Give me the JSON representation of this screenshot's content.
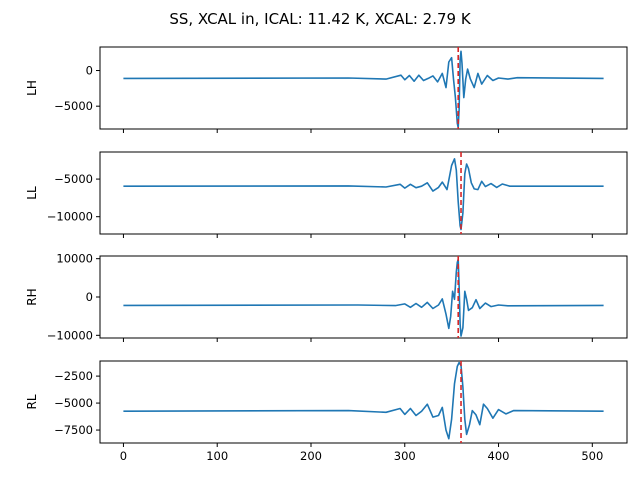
{
  "chart_data": [
    {
      "type": "line",
      "title": "SS, XCAL in, ICAL: 11.42 K, XCAL: 2.79 K",
      "ylabel": "LH",
      "xlim": [
        -25,
        537
      ],
      "ylim": [
        -8200,
        3300
      ],
      "yticks": [
        0,
        -5000
      ],
      "xticks": [
        0,
        100,
        200,
        300,
        400,
        500
      ],
      "show_xtick_labels": false,
      "baseline": -1100,
      "peak_x": 357,
      "vline_x": 357,
      "series": [
        {
          "peak_amp": 9000,
          "sign": 1
        }
      ],
      "points": [
        [
          0,
          -1100
        ],
        [
          240,
          -1050
        ],
        [
          280,
          -1200
        ],
        [
          296,
          -650
        ],
        [
          300,
          -1300
        ],
        [
          305,
          -700
        ],
        [
          310,
          -1500
        ],
        [
          315,
          -650
        ],
        [
          320,
          -1400
        ],
        [
          325,
          -1100
        ],
        [
          330,
          -750
        ],
        [
          335,
          -1600
        ],
        [
          340,
          -400
        ],
        [
          344,
          -2400
        ],
        [
          347,
          1200
        ],
        [
          350,
          1800
        ],
        [
          352,
          -1200
        ],
        [
          354,
          -3800
        ],
        [
          356,
          -7400
        ],
        [
          357,
          -8000
        ],
        [
          358,
          -5500
        ],
        [
          359,
          1500
        ],
        [
          360,
          2700
        ],
        [
          361,
          1000
        ],
        [
          363,
          -3800
        ],
        [
          365,
          -1200
        ],
        [
          367,
          200
        ],
        [
          370,
          -1200
        ],
        [
          374,
          -2400
        ],
        [
          378,
          -400
        ],
        [
          382,
          -1900
        ],
        [
          388,
          -700
        ],
        [
          394,
          -1400
        ],
        [
          400,
          -1050
        ],
        [
          410,
          -1200
        ],
        [
          420,
          -1000
        ],
        [
          512,
          -1100
        ]
      ],
      "vline_color": "#d62728",
      "line_color": "#1f77b4"
    },
    {
      "type": "line",
      "ylabel": "LL",
      "xlim": [
        -25,
        537
      ],
      "ylim": [
        -12300,
        -1400
      ],
      "yticks": [
        -5000,
        -10000
      ],
      "xticks": [
        0,
        100,
        200,
        300,
        400,
        500
      ],
      "show_xtick_labels": false,
      "vline_x": 360,
      "points": [
        [
          0,
          -5950
        ],
        [
          240,
          -5900
        ],
        [
          280,
          -6050
        ],
        [
          295,
          -5700
        ],
        [
          300,
          -6200
        ],
        [
          306,
          -5700
        ],
        [
          312,
          -6150
        ],
        [
          318,
          -5950
        ],
        [
          324,
          -5500
        ],
        [
          330,
          -6600
        ],
        [
          336,
          -6100
        ],
        [
          340,
          -5400
        ],
        [
          345,
          -6400
        ],
        [
          350,
          -3200
        ],
        [
          353,
          -2300
        ],
        [
          355,
          -3800
        ],
        [
          357,
          -8000
        ],
        [
          359,
          -11200
        ],
        [
          360,
          -11700
        ],
        [
          362,
          -9500
        ],
        [
          364,
          -4300
        ],
        [
          366,
          -3000
        ],
        [
          368,
          -3600
        ],
        [
          371,
          -5500
        ],
        [
          374,
          -6300
        ],
        [
          378,
          -6400
        ],
        [
          382,
          -5300
        ],
        [
          386,
          -6000
        ],
        [
          392,
          -5600
        ],
        [
          398,
          -6100
        ],
        [
          404,
          -5650
        ],
        [
          412,
          -5950
        ],
        [
          512,
          -5950
        ]
      ],
      "vline_color": "#d62728",
      "line_color": "#1f77b4"
    },
    {
      "type": "line",
      "ylabel": "RH",
      "xlim": [
        -25,
        537
      ],
      "ylim": [
        -10700,
        10700
      ],
      "yticks": [
        10000,
        0,
        -10000
      ],
      "xticks": [
        0,
        100,
        200,
        300,
        400,
        500
      ],
      "show_xtick_labels": false,
      "vline_x": 357,
      "points": [
        [
          0,
          -2200
        ],
        [
          250,
          -2100
        ],
        [
          290,
          -2250
        ],
        [
          300,
          -1800
        ],
        [
          306,
          -2700
        ],
        [
          312,
          -1700
        ],
        [
          318,
          -2700
        ],
        [
          324,
          -1400
        ],
        [
          330,
          -3000
        ],
        [
          336,
          -2100
        ],
        [
          340,
          -500
        ],
        [
          344,
          -4500
        ],
        [
          347,
          -8200
        ],
        [
          349,
          -5000
        ],
        [
          351,
          1500
        ],
        [
          353,
          -600
        ],
        [
          355,
          6500
        ],
        [
          356,
          9000
        ],
        [
          357,
          9800
        ],
        [
          358,
          3000
        ],
        [
          359,
          -7000
        ],
        [
          360,
          -10200
        ],
        [
          362,
          -8000
        ],
        [
          364,
          1500
        ],
        [
          366,
          -600
        ],
        [
          368,
          -3500
        ],
        [
          372,
          -2800
        ],
        [
          376,
          -700
        ],
        [
          380,
          -3000
        ],
        [
          386,
          -1600
        ],
        [
          392,
          -2500
        ],
        [
          400,
          -2100
        ],
        [
          410,
          -2300
        ],
        [
          512,
          -2200
        ]
      ],
      "vline_color": "#d62728",
      "line_color": "#1f77b4"
    },
    {
      "type": "line",
      "ylabel": "RL",
      "xlim": [
        -25,
        537
      ],
      "ylim": [
        -8700,
        -1100
      ],
      "yticks": [
        -2500,
        -5000,
        -7500
      ],
      "xticks": [
        0,
        100,
        200,
        300,
        400,
        500
      ],
      "show_xtick_labels": true,
      "vline_x": 360,
      "points": [
        [
          0,
          -5750
        ],
        [
          240,
          -5700
        ],
        [
          280,
          -5850
        ],
        [
          295,
          -5500
        ],
        [
          300,
          -6050
        ],
        [
          306,
          -5500
        ],
        [
          312,
          -6150
        ],
        [
          318,
          -5750
        ],
        [
          324,
          -5100
        ],
        [
          330,
          -6300
        ],
        [
          336,
          -6150
        ],
        [
          340,
          -5400
        ],
        [
          344,
          -7500
        ],
        [
          347,
          -8300
        ],
        [
          350,
          -6500
        ],
        [
          353,
          -3200
        ],
        [
          356,
          -1600
        ],
        [
          358,
          -1250
        ],
        [
          360,
          -1500
        ],
        [
          362,
          -3500
        ],
        [
          364,
          -6500
        ],
        [
          366,
          -7900
        ],
        [
          369,
          -7000
        ],
        [
          372,
          -5700
        ],
        [
          376,
          -6100
        ],
        [
          380,
          -7000
        ],
        [
          384,
          -5100
        ],
        [
          388,
          -5500
        ],
        [
          394,
          -6400
        ],
        [
          400,
          -5600
        ],
        [
          408,
          -6000
        ],
        [
          416,
          -5700
        ],
        [
          512,
          -5750
        ]
      ],
      "vline_color": "#d62728",
      "line_color": "#1f77b4"
    }
  ]
}
